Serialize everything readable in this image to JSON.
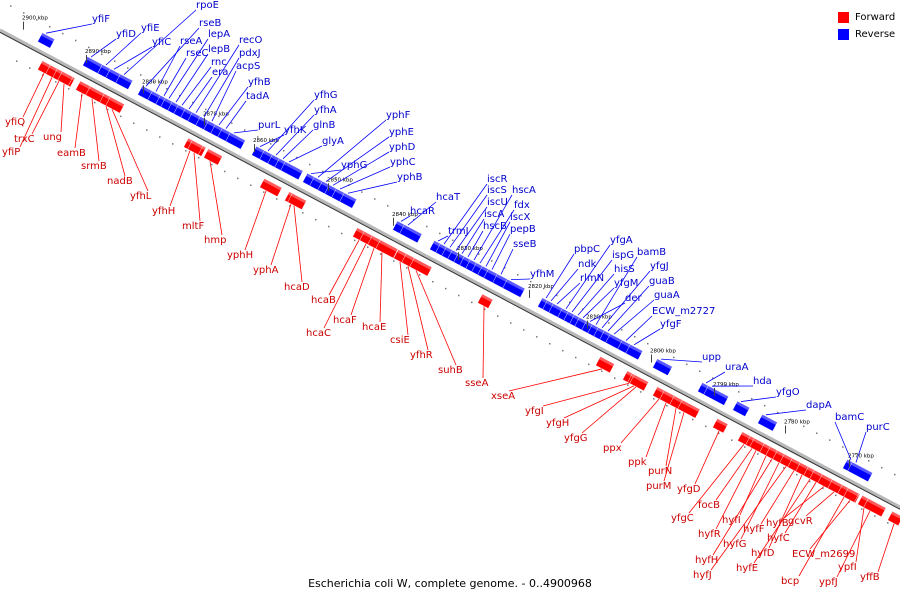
{
  "caption": "Escherichia coli W, complete genome. - 0..4900968",
  "legend": [
    {
      "label": "Forward",
      "color": "#ff0000"
    },
    {
      "label": "Reverse",
      "color": "#0000ff"
    }
  ],
  "colors": {
    "forward": "#ff0000",
    "reverse": "#0000ff",
    "forward_label": "#cc0000",
    "reverse_label": "#0000cc",
    "axis": "#888888"
  },
  "ticks": [
    "2900 kbp",
    "2890 kbp",
    "2880 kbp",
    "2870 kbp",
    "2860 kbp",
    "2850 kbp",
    "2840 kbp",
    "2830 kbp",
    "2820 kbp",
    "2810 kbp",
    "2800 kbp",
    "2790 kbp",
    "2780 kbp",
    "2770 kbp"
  ],
  "reverse_genes": [
    "yfiF",
    "yfiD",
    "yfiE",
    "yfiC",
    "rpoE",
    "rseB",
    "rseA",
    "rseC",
    "lepA",
    "lepB",
    "rnc",
    "era",
    "recO",
    "pdxJ",
    "acpS",
    "yfhB",
    "tadA",
    "purL",
    "yfhK",
    "yfhG",
    "yfhA",
    "glnB",
    "glyA",
    "yphG",
    "yphF",
    "yphE",
    "yphD",
    "yphC",
    "yphB",
    "hcaR",
    "hcaT",
    "trmJ",
    "iscR",
    "iscS",
    "iscU",
    "iscA",
    "hscB",
    "hscA",
    "fdx",
    "iscX",
    "pepB",
    "sseB",
    "yfhM",
    "pbpC",
    "ndk",
    "rlmN",
    "yfgA",
    "ispG",
    "hisS",
    "yfgM",
    "der",
    "bamB",
    "yfgJ",
    "guaB",
    "guaA",
    "ECW_m2727",
    "yfgF",
    "upp",
    "uraA",
    "hda",
    "yfgO",
    "dapA",
    "bamC",
    "purC"
  ],
  "forward_genes": [
    "yfiQ",
    "yfiP",
    "trxC",
    "ung",
    "eamB",
    "srmB",
    "nadB",
    "yfhL",
    "yfhH",
    "mltF",
    "hmp",
    "yphH",
    "yphA",
    "hcaD",
    "hcaB",
    "hcaC",
    "hcaF",
    "hcaE",
    "csiE",
    "yfhR",
    "suhB",
    "sseA",
    "xseA",
    "yfgI",
    "yfgH",
    "yfgG",
    "ppx",
    "ppk",
    "purN",
    "purM",
    "yfgD",
    "yfgC",
    "focB",
    "hyfR",
    "hyfI",
    "hyfH",
    "hyfG",
    "hyfJ",
    "hyfF",
    "hyfD",
    "hyfE",
    "hyfC",
    "hyfB",
    "gcvR",
    "bcp",
    "ECW_m2699",
    "ypfI",
    "ypfJ",
    "yffB"
  ]
}
